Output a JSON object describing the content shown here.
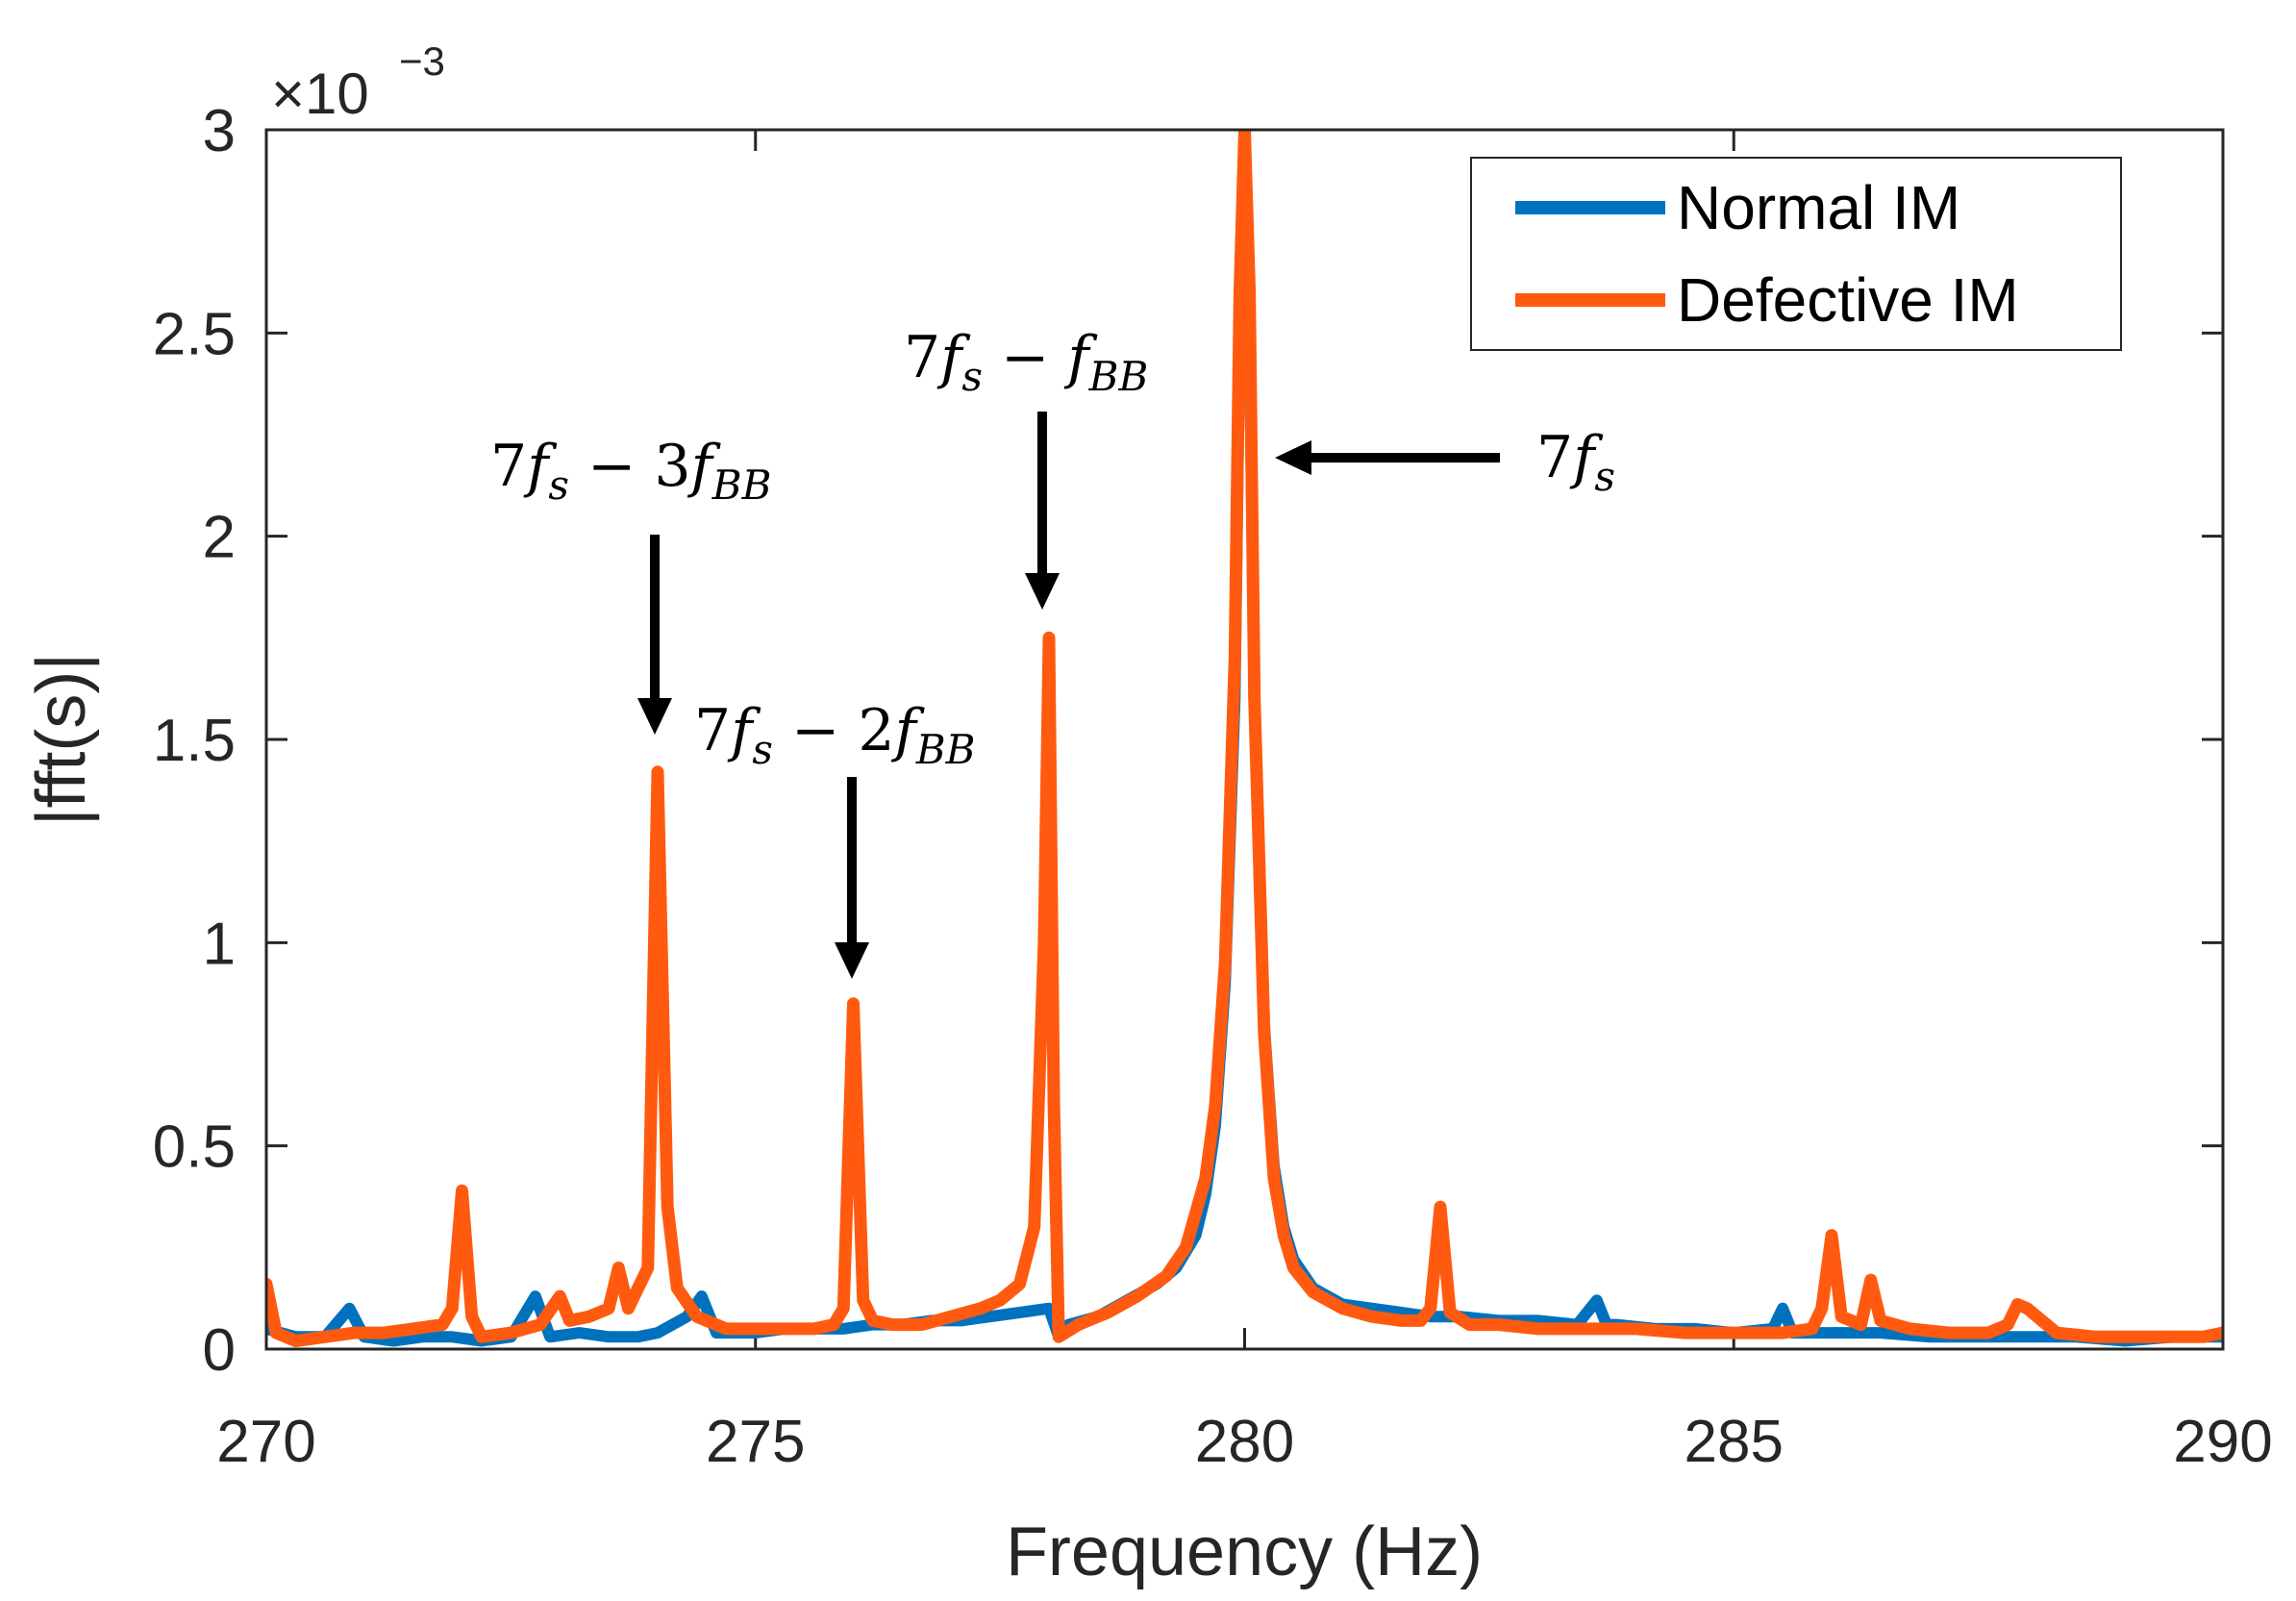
{
  "chart_data": {
    "type": "line",
    "title": "",
    "xlabel": "Frequency (Hz)",
    "ylabel": "|fft(s)|",
    "xlim": [
      270,
      290
    ],
    "ylim": [
      0,
      3
    ],
    "x_ticks": [
      "270",
      "275",
      "280",
      "285",
      "290"
    ],
    "y_ticks": [
      "0",
      "0.5",
      "1",
      "1.5",
      "2",
      "2.5",
      "3"
    ],
    "y_scale_label": {
      "base": "×10",
      "exponent": "−3"
    },
    "legend_position": "top-right",
    "series": [
      {
        "name": "Normal IM",
        "color": "#0072BD",
        "x": [
          270.0,
          270.3,
          270.6,
          270.85,
          271.0,
          271.3,
          271.6,
          271.9,
          272.2,
          272.5,
          272.75,
          272.9,
          273.2,
          273.5,
          273.8,
          274.0,
          274.3,
          274.45,
          274.6,
          274.8,
          275.0,
          275.3,
          275.6,
          275.9,
          276.2,
          276.5,
          276.8,
          277.1,
          277.4,
          277.7,
          278.0,
          278.1,
          278.2,
          278.5,
          278.8,
          279.1,
          279.3,
          279.5,
          279.6,
          279.7,
          279.8,
          279.9,
          279.95,
          280.0,
          280.05,
          280.1,
          280.2,
          280.3,
          280.4,
          280.5,
          280.7,
          281.0,
          281.3,
          281.6,
          281.9,
          282.2,
          282.6,
          283.0,
          283.4,
          283.6,
          283.7,
          283.8,
          284.2,
          284.6,
          285.0,
          285.4,
          285.5,
          285.6,
          286.0,
          286.5,
          287.0,
          287.5,
          288.0,
          288.5,
          289.0,
          289.5,
          290.0
        ],
        "values": [
          0.05,
          0.03,
          0.03,
          0.1,
          0.03,
          0.02,
          0.03,
          0.03,
          0.02,
          0.03,
          0.13,
          0.03,
          0.04,
          0.03,
          0.03,
          0.04,
          0.08,
          0.13,
          0.04,
          0.04,
          0.04,
          0.05,
          0.05,
          0.05,
          0.06,
          0.06,
          0.07,
          0.07,
          0.08,
          0.09,
          0.1,
          0.03,
          0.06,
          0.08,
          0.12,
          0.16,
          0.2,
          0.28,
          0.38,
          0.55,
          0.9,
          1.6,
          2.5,
          3.0,
          2.5,
          1.6,
          0.8,
          0.45,
          0.3,
          0.22,
          0.15,
          0.11,
          0.1,
          0.09,
          0.08,
          0.08,
          0.07,
          0.07,
          0.06,
          0.12,
          0.06,
          0.06,
          0.05,
          0.05,
          0.04,
          0.05,
          0.1,
          0.04,
          0.04,
          0.04,
          0.03,
          0.03,
          0.03,
          0.03,
          0.02,
          0.03,
          0.03
        ]
      },
      {
        "name": "Defective IM",
        "color": "#FF5A0F",
        "x": [
          270.0,
          270.1,
          270.3,
          270.6,
          270.9,
          271.2,
          271.5,
          271.8,
          271.9,
          272.0,
          272.1,
          272.2,
          272.5,
          272.8,
          273.0,
          273.1,
          273.3,
          273.5,
          273.6,
          273.7,
          273.9,
          274.0,
          274.1,
          274.2,
          274.4,
          274.7,
          275.0,
          275.3,
          275.6,
          275.8,
          275.9,
          276.0,
          276.1,
          276.2,
          276.4,
          276.7,
          277.0,
          277.3,
          277.5,
          277.7,
          277.85,
          277.95,
          278.0,
          278.05,
          278.1,
          278.3,
          278.6,
          278.9,
          279.2,
          279.4,
          279.6,
          279.7,
          279.8,
          279.9,
          279.95,
          280.0,
          280.05,
          280.1,
          280.2,
          280.3,
          280.4,
          280.5,
          280.7,
          281.0,
          281.3,
          281.6,
          281.8,
          281.9,
          282.0,
          282.1,
          282.3,
          282.6,
          283.0,
          283.5,
          284.0,
          284.5,
          285.0,
          285.5,
          285.8,
          285.9,
          286.0,
          286.1,
          286.3,
          286.4,
          286.5,
          286.8,
          287.2,
          287.6,
          287.8,
          287.9,
          288.0,
          288.3,
          288.7,
          289.0,
          289.5,
          289.8,
          290.0
        ],
        "values": [
          0.16,
          0.04,
          0.02,
          0.03,
          0.04,
          0.04,
          0.05,
          0.06,
          0.1,
          0.39,
          0.08,
          0.03,
          0.04,
          0.06,
          0.13,
          0.07,
          0.08,
          0.1,
          0.2,
          0.1,
          0.2,
          1.42,
          0.35,
          0.15,
          0.08,
          0.05,
          0.05,
          0.05,
          0.05,
          0.06,
          0.1,
          0.85,
          0.12,
          0.07,
          0.06,
          0.06,
          0.08,
          0.1,
          0.12,
          0.16,
          0.3,
          1.0,
          1.75,
          0.6,
          0.03,
          0.06,
          0.09,
          0.13,
          0.18,
          0.25,
          0.42,
          0.6,
          0.95,
          1.7,
          2.6,
          3.0,
          2.6,
          1.6,
          0.78,
          0.42,
          0.28,
          0.2,
          0.14,
          0.1,
          0.08,
          0.07,
          0.07,
          0.1,
          0.35,
          0.09,
          0.06,
          0.06,
          0.05,
          0.05,
          0.05,
          0.04,
          0.04,
          0.04,
          0.05,
          0.1,
          0.28,
          0.08,
          0.06,
          0.17,
          0.07,
          0.05,
          0.04,
          0.04,
          0.06,
          0.11,
          0.1,
          0.04,
          0.03,
          0.03,
          0.03,
          0.03,
          0.04
        ]
      }
    ],
    "annotations": [
      {
        "text_lead": "7",
        "text_f": "f",
        "text_sub": "s",
        "text_op": "",
        "text_mult": "",
        "text_f2": "",
        "text_sub2": "",
        "label": "7f_s",
        "x": 280.0,
        "y": 2.2,
        "arrow": "left"
      },
      {
        "text_lead": "7",
        "text_f": "f",
        "text_sub": "s",
        "text_op": " − ",
        "text_mult": "",
        "text_f2": "f",
        "text_sub2": "BB",
        "label": "7f_s − f_BB",
        "x": 278.0,
        "y": 1.8,
        "arrow": "down"
      },
      {
        "text_lead": "7",
        "text_f": "f",
        "text_sub": "s",
        "text_op": " − ",
        "text_mult": "2",
        "text_f2": "f",
        "text_sub2": "BB",
        "label": "7f_s − 2f_BB",
        "x": 276.0,
        "y": 0.92,
        "arrow": "down"
      },
      {
        "text_lead": "7",
        "text_f": "f",
        "text_sub": "s",
        "text_op": " − ",
        "text_mult": "3",
        "text_f2": "f",
        "text_sub2": "BB",
        "label": "7f_s − 3f_BB",
        "x": 274.0,
        "y": 1.5,
        "arrow": "down"
      }
    ]
  }
}
